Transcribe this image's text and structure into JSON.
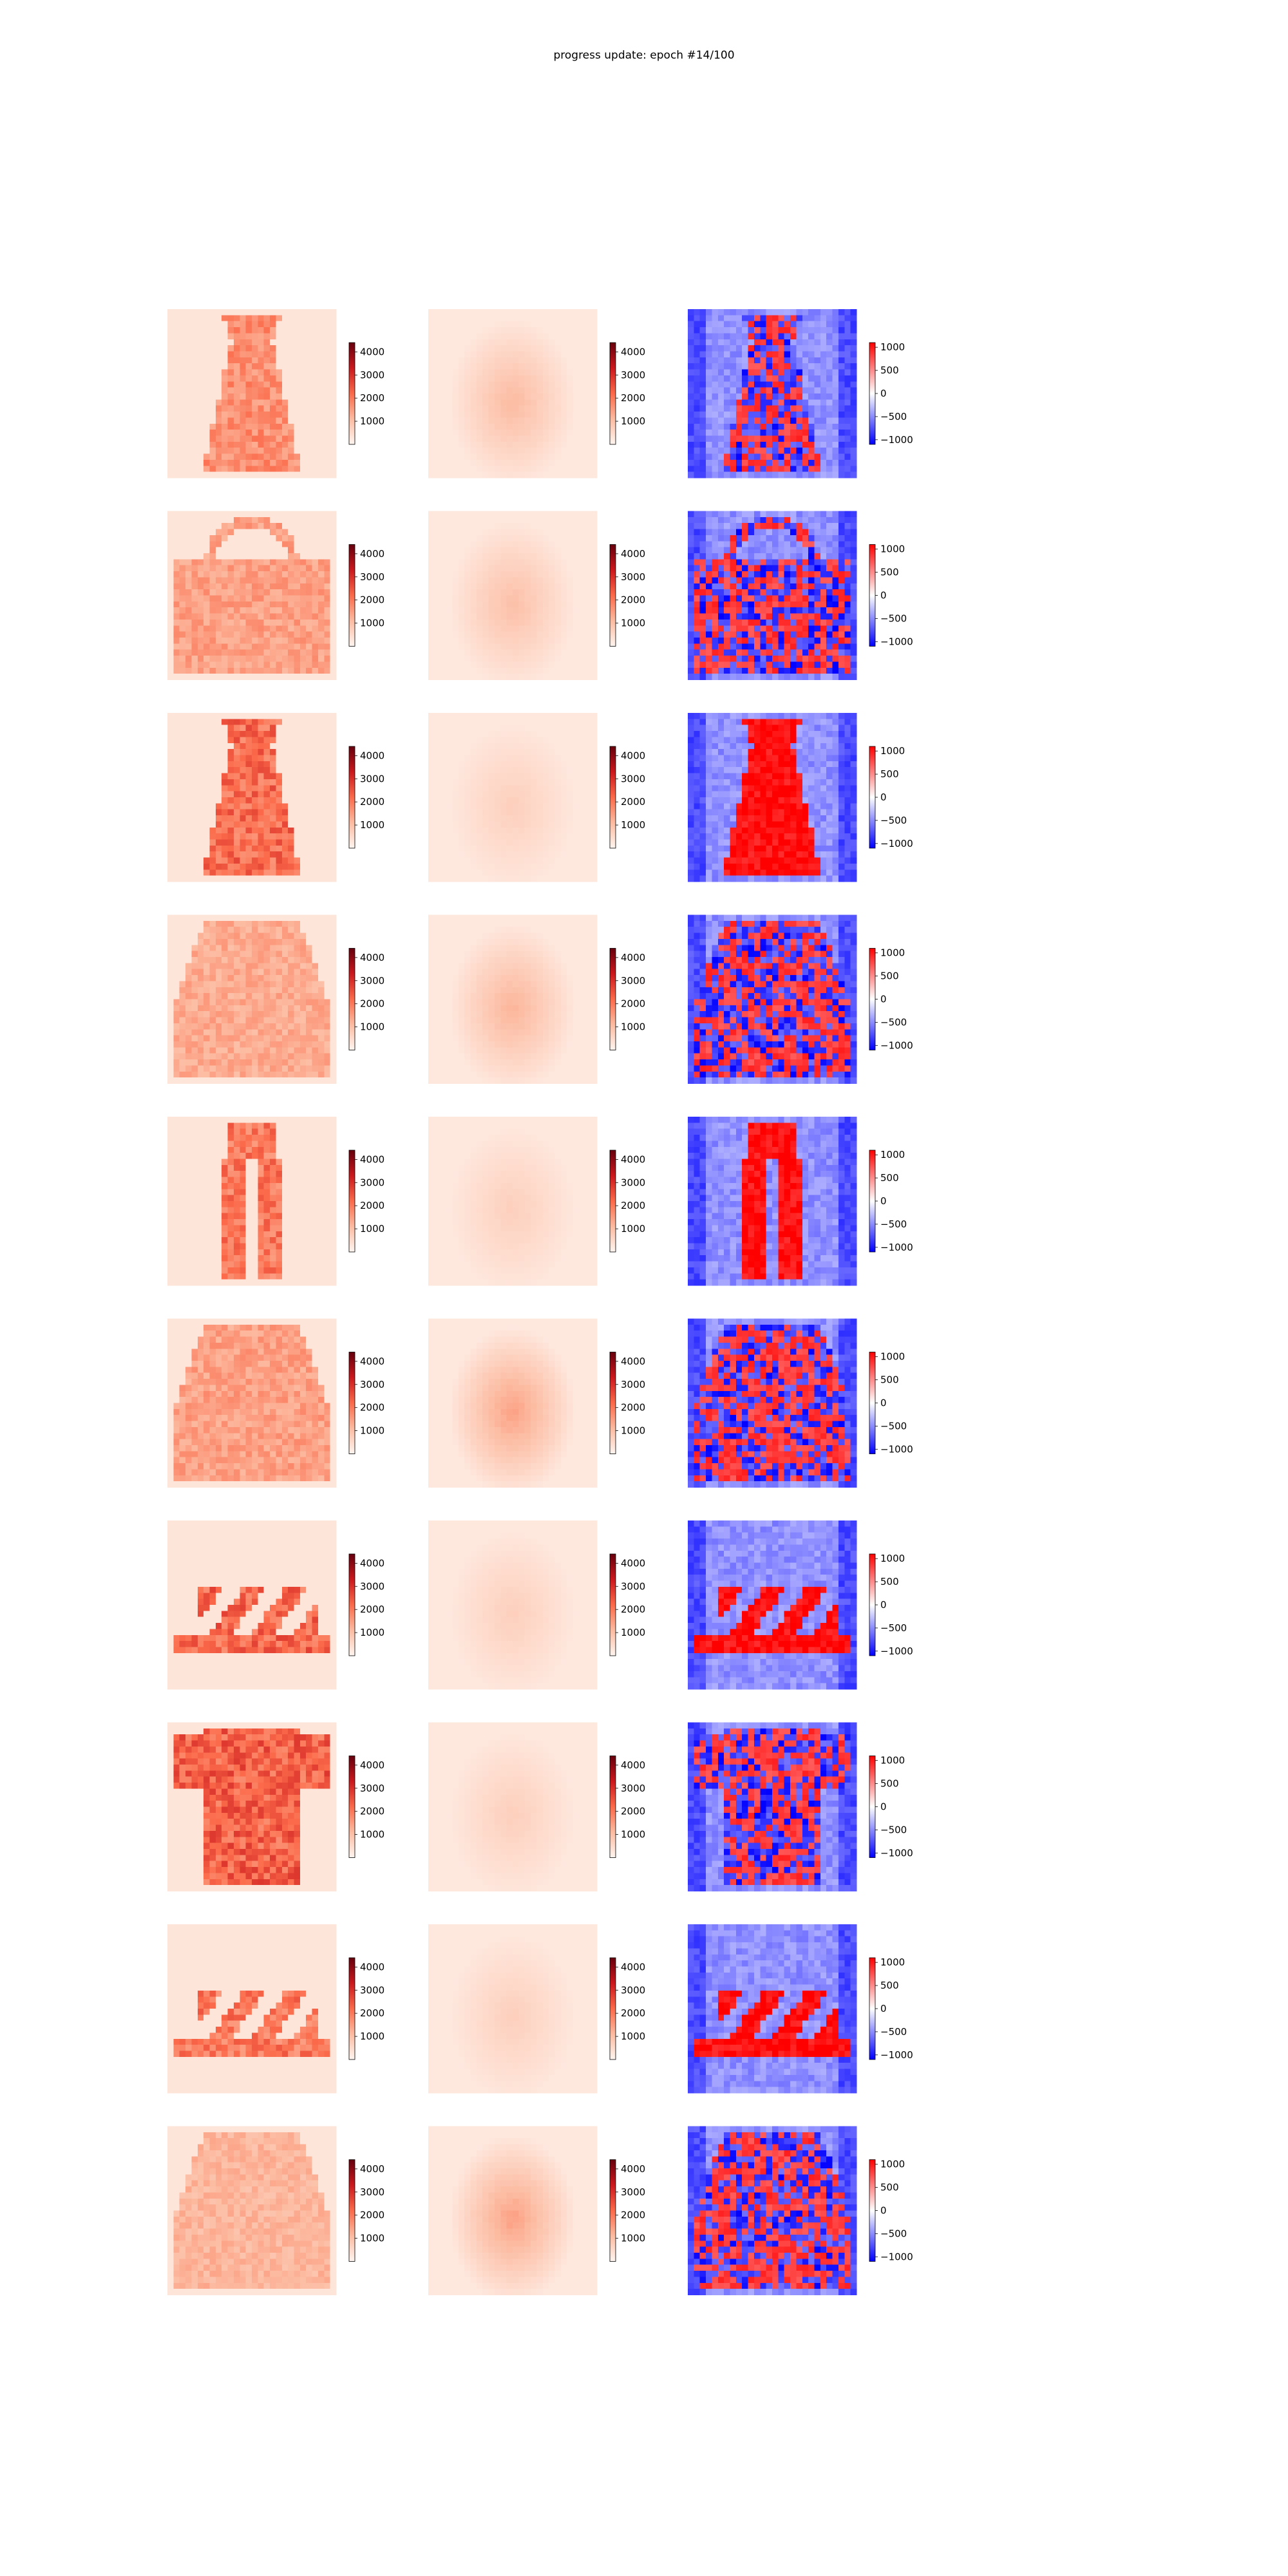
{
  "title": "progress update: epoch #14/100",
  "chart_data": {
    "type": "heatmap",
    "title": "progress update: epoch #14/100",
    "grid": false,
    "layout": {
      "rows": 10,
      "columns": 3
    },
    "columns": [
      {
        "role": "input image",
        "colormap": "Reds",
        "clim": [
          0,
          4400
        ],
        "colorbar_ticks": [
          "1000",
          "2000",
          "3000",
          "4000"
        ],
        "colorbar_values": [
          1000,
          2000,
          3000,
          4000
        ]
      },
      {
        "role": "reconstruction",
        "colormap": "Reds",
        "clim": [
          0,
          4400
        ],
        "colorbar_ticks": [
          "1000",
          "2000",
          "3000",
          "4000"
        ],
        "colorbar_values": [
          1000,
          2000,
          3000,
          4000
        ]
      },
      {
        "role": "difference",
        "colormap": "bwr",
        "clim": [
          -1100,
          1100
        ],
        "colorbar_ticks": [
          "1000",
          "500",
          "0",
          "−500",
          "−1000"
        ],
        "colorbar_values": [
          1000,
          500,
          0,
          -500,
          -1000
        ]
      }
    ],
    "rows": [
      {
        "item": "dress",
        "input_peak": 1800,
        "recon_peak": 900,
        "diff_pattern": "mixed"
      },
      {
        "item": "bag",
        "input_peak": 1500,
        "recon_peak": 800,
        "diff_pattern": "mixed"
      },
      {
        "item": "dress",
        "input_peak": 2400,
        "recon_peak": 500,
        "diff_pattern": "positive"
      },
      {
        "item": "pullover",
        "input_peak": 1300,
        "recon_peak": 1000,
        "diff_pattern": "mixed"
      },
      {
        "item": "trouser",
        "input_peak": 2200,
        "recon_peak": 500,
        "diff_pattern": "positive"
      },
      {
        "item": "pullover",
        "input_peak": 1500,
        "recon_peak": 1300,
        "diff_pattern": "mixed"
      },
      {
        "item": "sandal",
        "input_peak": 2500,
        "recon_peak": 500,
        "diff_pattern": "positive"
      },
      {
        "item": "t-shirt",
        "input_peak": 2600,
        "recon_peak": 500,
        "diff_pattern": "mixed"
      },
      {
        "item": "sandal",
        "input_peak": 2200,
        "recon_peak": 500,
        "diff_pattern": "positive"
      },
      {
        "item": "coat",
        "input_peak": 1100,
        "recon_peak": 1300,
        "diff_pattern": "mixed"
      }
    ]
  }
}
